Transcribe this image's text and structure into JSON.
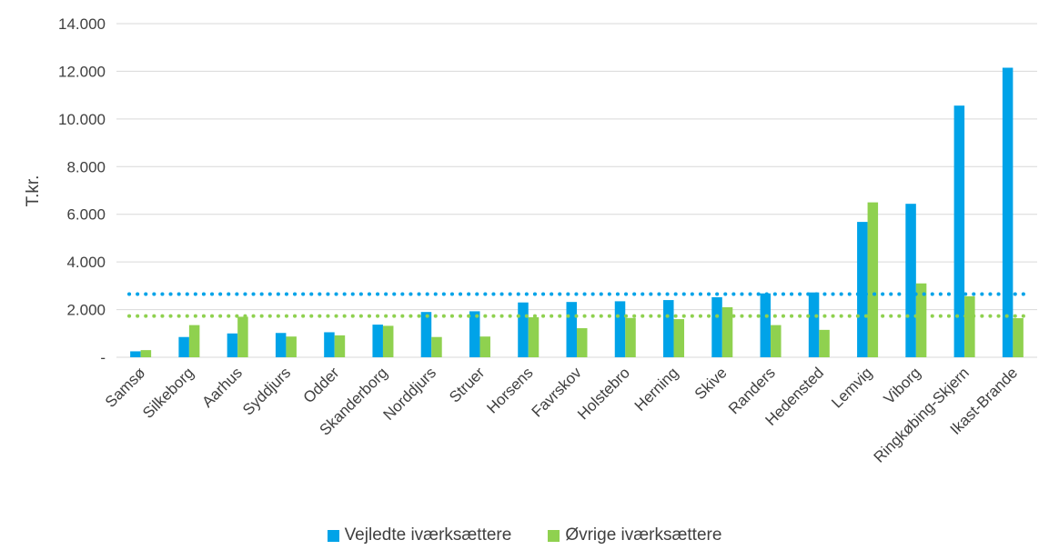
{
  "chart_data": {
    "type": "bar",
    "ylabel": "T.kr.",
    "ylim": [
      0,
      14000
    ],
    "yticks": [
      {
        "value": 0,
        "label": "-"
      },
      {
        "value": 2000,
        "label": "2.000"
      },
      {
        "value": 4000,
        "label": "4.000"
      },
      {
        "value": 6000,
        "label": "6.000"
      },
      {
        "value": 8000,
        "label": "8.000"
      },
      {
        "value": 10000,
        "label": "10.000"
      },
      {
        "value": 12000,
        "label": "12.000"
      },
      {
        "value": 14000,
        "label": "14.000"
      }
    ],
    "grid": true,
    "legend_position": "bottom",
    "categories": [
      "Samsø",
      "Silkeborg",
      "Aarhus",
      "Syddjurs",
      "Odder",
      "Skanderborg",
      "Norddjurs",
      "Struer",
      "Horsens",
      "Favrskov",
      "Holstebro",
      "Herning",
      "Skive",
      "Randers",
      "Hedensted",
      "Lemvig",
      "Viborg",
      "Ringkøbing-Skjern",
      "Ikast-Brande"
    ],
    "series": [
      {
        "name": "Vejledte iværksættere",
        "color": "#00A3E8",
        "values": [
          250,
          850,
          1000,
          1020,
          1050,
          1370,
          1900,
          1930,
          2300,
          2320,
          2350,
          2400,
          2520,
          2680,
          2720,
          5680,
          6440,
          10560,
          12150
        ]
      },
      {
        "name": "Øvrige iværksættere",
        "color": "#8FD14F",
        "values": [
          300,
          1350,
          1700,
          870,
          920,
          1320,
          850,
          870,
          1680,
          1220,
          1650,
          1600,
          2100,
          1350,
          1150,
          6500,
          3100,
          2560,
          1640
        ]
      }
    ],
    "reference_lines": [
      {
        "series": "Vejledte iværksættere",
        "value": 2650,
        "color": "#00A3E8",
        "style": "dotted"
      },
      {
        "series": "Øvrige iværksættere",
        "value": 1730,
        "color": "#8FD14F",
        "style": "dotted"
      }
    ]
  }
}
